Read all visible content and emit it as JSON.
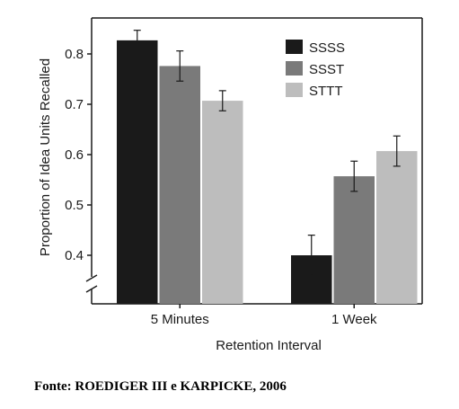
{
  "chart_data": {
    "type": "bar",
    "categories": [
      "5 Minutes",
      "1 Week"
    ],
    "series": [
      {
        "name": "SSSS",
        "color": "#1a1a1a",
        "values": [
          0.827,
          0.4
        ],
        "errors": [
          0.02,
          0.04
        ]
      },
      {
        "name": "SSST",
        "color": "#7a7a7a",
        "values": [
          0.776,
          0.557
        ],
        "errors": [
          0.03,
          0.03
        ]
      },
      {
        "name": "STTT",
        "color": "#bdbdbd",
        "values": [
          0.707,
          0.607
        ],
        "errors": [
          0.02,
          0.03
        ]
      }
    ],
    "xlabel": "Retention Interval",
    "ylabel": "Proportion of Idea Units Recalled",
    "yticks": [
      "0.4",
      "0.5",
      "0.6",
      "0.7",
      "0.8"
    ],
    "ylim": [
      0.3,
      0.86
    ],
    "y_axis_break": true,
    "legend_position": "top-right",
    "grid": false
  },
  "caption": "Fonte: ROEDIGER III e KARPICKE, 2006"
}
